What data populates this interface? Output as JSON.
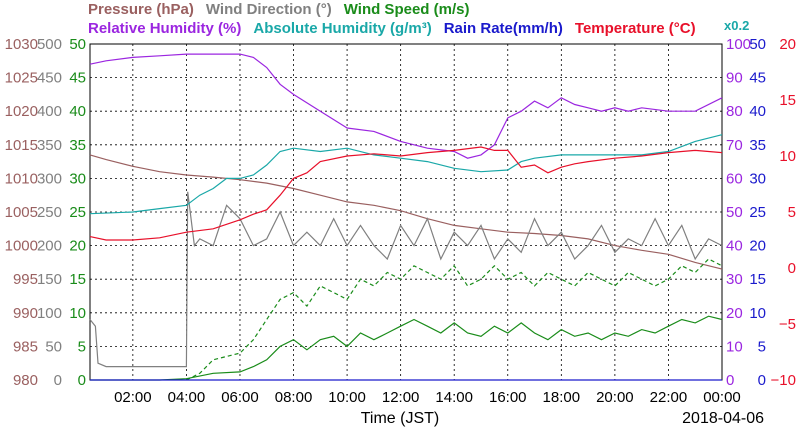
{
  "legend_row1": [
    {
      "label": "Pressure (hPa)",
      "color": "#9a6060"
    },
    {
      "label": "Wind Direction (°)",
      "color": "#808080"
    },
    {
      "label": "Wind Speed (m/s)",
      "color": "#1a8c1a"
    }
  ],
  "legend_row2": [
    {
      "label": "Relative Humidity (%)",
      "color": "#9b26e0"
    },
    {
      "label": "Absolute Humidity (g/m³)",
      "color": "#1aa8a8"
    },
    {
      "label": "Rain Rate(mm/h)",
      "color": "#1a1acc"
    },
    {
      "label": "Temperature (°C)",
      "color": "#e8102a"
    }
  ],
  "abs_humidity_factor": "x0.2",
  "xlabel": "Time (JST)",
  "date": "2018-04-06",
  "chart_data": {
    "type": "line",
    "x_ticks": [
      "02:00",
      "04:00",
      "06:00",
      "08:00",
      "10:00",
      "12:00",
      "14:00",
      "16:00",
      "18:00",
      "20:00",
      "22:00",
      "00:00"
    ],
    "x_range_hours": [
      0.4,
      24
    ],
    "grid": true,
    "axes": {
      "pressure": {
        "ticks": [
          "1030",
          "1025",
          "1020",
          "1015",
          "1010",
          "1005",
          "1000",
          "995",
          "990",
          "985",
          "980"
        ],
        "range": [
          980,
          1030
        ],
        "color": "#9a6060"
      },
      "wind_direction": {
        "ticks": [
          "500",
          "450",
          "400",
          "350",
          "300",
          "250",
          "200",
          "150",
          "100",
          "50",
          "0"
        ],
        "range": [
          0,
          500
        ],
        "color": "#808080"
      },
      "wind_speed": {
        "ticks": [
          "50",
          "45",
          "40",
          "35",
          "30",
          "25",
          "20",
          "15",
          "10",
          "5",
          "0"
        ],
        "range": [
          0,
          50
        ],
        "color": "#1a8c1a"
      },
      "humidity": {
        "ticks": [
          "100",
          "90",
          "80",
          "70",
          "60",
          "50",
          "40",
          "30",
          "20",
          "10",
          "0"
        ],
        "range": [
          0,
          100
        ],
        "color": "#9b26e0"
      },
      "rain_rate": {
        "ticks": [
          "50",
          "45",
          "40",
          "35",
          "30",
          "25",
          "20",
          "15",
          "10",
          "5",
          "0"
        ],
        "range": [
          0,
          50
        ],
        "color": "#1a1acc"
      },
      "temperature": {
        "ticks": [
          "20",
          "15",
          "10",
          "5",
          "0",
          "−5",
          "−10"
        ],
        "range": [
          -10,
          20
        ],
        "color": "#e8102a"
      }
    },
    "series": [
      {
        "name": "Pressure (hPa)",
        "axis": "pressure",
        "color": "#9a6060",
        "points": [
          [
            0.4,
            1013.5
          ],
          [
            1,
            1012.8
          ],
          [
            2,
            1011.8
          ],
          [
            3,
            1011
          ],
          [
            4,
            1010.5
          ],
          [
            5,
            1010.2
          ],
          [
            6,
            1009.8
          ],
          [
            7,
            1009.3
          ],
          [
            8,
            1008.5
          ],
          [
            9,
            1007.5
          ],
          [
            10,
            1006.5
          ],
          [
            11,
            1006
          ],
          [
            12,
            1005.2
          ],
          [
            13,
            1004
          ],
          [
            14,
            1003
          ],
          [
            15,
            1002.5
          ],
          [
            16,
            1002
          ],
          [
            17,
            1001.8
          ],
          [
            18,
            1001.5
          ],
          [
            19,
            1001
          ],
          [
            20,
            1000
          ],
          [
            21,
            999.3
          ],
          [
            22,
            998.7
          ],
          [
            23,
            997.5
          ],
          [
            24,
            996.5
          ]
        ]
      },
      {
        "name": "Wind Direction (°)",
        "axis": "wind_direction",
        "color": "#808080",
        "points": [
          [
            0.4,
            90
          ],
          [
            0.6,
            80
          ],
          [
            0.7,
            25
          ],
          [
            1,
            20
          ],
          [
            2,
            20
          ],
          [
            3,
            20
          ],
          [
            4,
            20
          ],
          [
            4.05,
            280
          ],
          [
            4.3,
            200
          ],
          [
            4.5,
            210
          ],
          [
            5,
            200
          ],
          [
            5.5,
            260
          ],
          [
            6,
            240
          ],
          [
            6.5,
            200
          ],
          [
            7,
            210
          ],
          [
            7.5,
            250
          ],
          [
            8,
            200
          ],
          [
            8.5,
            220
          ],
          [
            9,
            200
          ],
          [
            9.5,
            240
          ],
          [
            10,
            200
          ],
          [
            10.5,
            230
          ],
          [
            11,
            200
          ],
          [
            11.5,
            180
          ],
          [
            12,
            230
          ],
          [
            12.5,
            200
          ],
          [
            13,
            240
          ],
          [
            13.5,
            180
          ],
          [
            14,
            220
          ],
          [
            14.5,
            200
          ],
          [
            15,
            230
          ],
          [
            15.5,
            180
          ],
          [
            16,
            210
          ],
          [
            16.5,
            190
          ],
          [
            17,
            240
          ],
          [
            17.5,
            200
          ],
          [
            18,
            220
          ],
          [
            18.5,
            180
          ],
          [
            19,
            200
          ],
          [
            19.5,
            230
          ],
          [
            20,
            190
          ],
          [
            20.5,
            210
          ],
          [
            21,
            200
          ],
          [
            21.5,
            240
          ],
          [
            22,
            200
          ],
          [
            22.5,
            230
          ],
          [
            23,
            180
          ],
          [
            23.5,
            210
          ],
          [
            24,
            200
          ]
        ]
      },
      {
        "name": "Wind Speed (m/s)",
        "axis": "wind_speed",
        "color": "#1a8c1a",
        "points": [
          [
            0.4,
            0
          ],
          [
            3,
            0
          ],
          [
            4,
            0.2
          ],
          [
            5,
            1
          ],
          [
            6,
            1.2
          ],
          [
            6.5,
            2
          ],
          [
            7,
            3
          ],
          [
            7.5,
            5
          ],
          [
            8,
            6
          ],
          [
            8.5,
            4.5
          ],
          [
            9,
            6
          ],
          [
            9.5,
            6.5
          ],
          [
            10,
            5
          ],
          [
            10.5,
            7
          ],
          [
            11,
            6
          ],
          [
            11.5,
            7
          ],
          [
            12,
            8
          ],
          [
            12.5,
            9
          ],
          [
            13,
            8
          ],
          [
            13.5,
            7
          ],
          [
            14,
            8.5
          ],
          [
            14.5,
            7
          ],
          [
            15,
            6.5
          ],
          [
            15.5,
            8
          ],
          [
            16,
            7
          ],
          [
            16.5,
            8.5
          ],
          [
            17,
            7
          ],
          [
            17.5,
            6
          ],
          [
            18,
            7.5
          ],
          [
            18.5,
            6.5
          ],
          [
            19,
            7
          ],
          [
            19.5,
            6
          ],
          [
            20,
            7
          ],
          [
            20.5,
            6.5
          ],
          [
            21,
            7.5
          ],
          [
            21.5,
            7
          ],
          [
            22,
            8
          ],
          [
            22.5,
            9
          ],
          [
            23,
            8.5
          ],
          [
            23.5,
            9.5
          ],
          [
            24,
            9
          ]
        ]
      },
      {
        "name": "Wind Speed (m/s) gust",
        "axis": "wind_speed",
        "color": "#1a8c1a",
        "points": [
          [
            4,
            0
          ],
          [
            4.5,
            1
          ],
          [
            5,
            3
          ],
          [
            6,
            4
          ],
          [
            6.5,
            6
          ],
          [
            7,
            9
          ],
          [
            7.5,
            12
          ],
          [
            8,
            13
          ],
          [
            8.5,
            11
          ],
          [
            9,
            14
          ],
          [
            9.5,
            13
          ],
          [
            10,
            12
          ],
          [
            10.5,
            15
          ],
          [
            11,
            14
          ],
          [
            11.5,
            16
          ],
          [
            12,
            15
          ],
          [
            12.5,
            17
          ],
          [
            13,
            16
          ],
          [
            13.5,
            15
          ],
          [
            14,
            17
          ],
          [
            14.5,
            14
          ],
          [
            15,
            15
          ],
          [
            15.5,
            17
          ],
          [
            16,
            15
          ],
          [
            16.5,
            16
          ],
          [
            17,
            14
          ],
          [
            17.5,
            16
          ],
          [
            18,
            15
          ],
          [
            18.5,
            14
          ],
          [
            19,
            16
          ],
          [
            19.5,
            15
          ],
          [
            20,
            14
          ],
          [
            20.5,
            16
          ],
          [
            21,
            15
          ],
          [
            21.5,
            14
          ],
          [
            22,
            15
          ],
          [
            22.5,
            17
          ],
          [
            23,
            16
          ],
          [
            23.5,
            18
          ],
          [
            24,
            17
          ]
        ]
      },
      {
        "name": "Relative Humidity (%)",
        "axis": "humidity",
        "color": "#9b26e0",
        "points": [
          [
            0.4,
            94
          ],
          [
            1,
            95
          ],
          [
            2,
            96
          ],
          [
            3,
            96.5
          ],
          [
            4,
            97
          ],
          [
            5,
            97
          ],
          [
            6,
            97
          ],
          [
            6.5,
            96
          ],
          [
            7,
            93
          ],
          [
            7.5,
            88
          ],
          [
            8,
            85
          ],
          [
            9,
            80
          ],
          [
            10,
            75
          ],
          [
            11,
            74
          ],
          [
            12,
            71
          ],
          [
            13,
            69
          ],
          [
            14,
            68
          ],
          [
            14.5,
            66
          ],
          [
            15,
            67
          ],
          [
            15.5,
            70
          ],
          [
            16,
            78
          ],
          [
            16.5,
            80
          ],
          [
            17,
            83
          ],
          [
            17.5,
            81
          ],
          [
            18,
            84
          ],
          [
            18.5,
            82
          ],
          [
            19,
            81
          ],
          [
            19.5,
            80
          ],
          [
            20,
            81
          ],
          [
            20.5,
            80
          ],
          [
            21,
            81
          ],
          [
            22,
            80
          ],
          [
            23,
            80
          ],
          [
            24,
            84
          ]
        ]
      },
      {
        "name": "Absolute Humidity (g/m³)",
        "axis": "humidity",
        "color": "#1aa8a8",
        "points": [
          [
            0.4,
            49.5
          ],
          [
            2,
            50
          ],
          [
            3,
            51
          ],
          [
            4,
            52
          ],
          [
            4.5,
            55
          ],
          [
            5,
            57
          ],
          [
            5.5,
            60
          ],
          [
            6,
            60
          ],
          [
            6.5,
            61
          ],
          [
            7,
            64
          ],
          [
            7.5,
            68
          ],
          [
            8,
            69
          ],
          [
            9,
            68
          ],
          [
            10,
            69
          ],
          [
            11,
            67
          ],
          [
            12,
            66
          ],
          [
            13,
            65
          ],
          [
            14,
            63
          ],
          [
            15,
            62
          ],
          [
            16,
            62.5
          ],
          [
            16.5,
            65
          ],
          [
            17,
            66
          ],
          [
            18,
            67
          ],
          [
            19,
            67
          ],
          [
            20,
            67
          ],
          [
            21,
            67
          ],
          [
            22,
            68
          ],
          [
            23,
            71
          ],
          [
            24,
            73
          ]
        ]
      },
      {
        "name": "Rain Rate(mm/h)",
        "axis": "rain_rate",
        "color": "#1a1acc",
        "points": [
          [
            0.4,
            0
          ],
          [
            24,
            0
          ]
        ]
      },
      {
        "name": "Temperature (°C)",
        "axis": "temperature",
        "color": "#e8102a",
        "points": [
          [
            0.4,
            2.8
          ],
          [
            1,
            2.5
          ],
          [
            2,
            2.5
          ],
          [
            3,
            2.7
          ],
          [
            4,
            3.2
          ],
          [
            5,
            3.5
          ],
          [
            6,
            4.3
          ],
          [
            6.5,
            4.8
          ],
          [
            7,
            5.2
          ],
          [
            7.5,
            6.5
          ],
          [
            8,
            8
          ],
          [
            8.5,
            8.5
          ],
          [
            9,
            9.5
          ],
          [
            10,
            10
          ],
          [
            11,
            10.2
          ],
          [
            12,
            10
          ],
          [
            13,
            10.3
          ],
          [
            14,
            10.5
          ],
          [
            15,
            10.8
          ],
          [
            15.5,
            10.5
          ],
          [
            16,
            10.5
          ],
          [
            16.5,
            9
          ],
          [
            17,
            9.2
          ],
          [
            17.5,
            8.5
          ],
          [
            18,
            9
          ],
          [
            18.5,
            9.3
          ],
          [
            19,
            9.5
          ],
          [
            20,
            9.8
          ],
          [
            21,
            10
          ],
          [
            22,
            10.3
          ],
          [
            23,
            10.5
          ],
          [
            24,
            10.3
          ]
        ]
      }
    ]
  }
}
